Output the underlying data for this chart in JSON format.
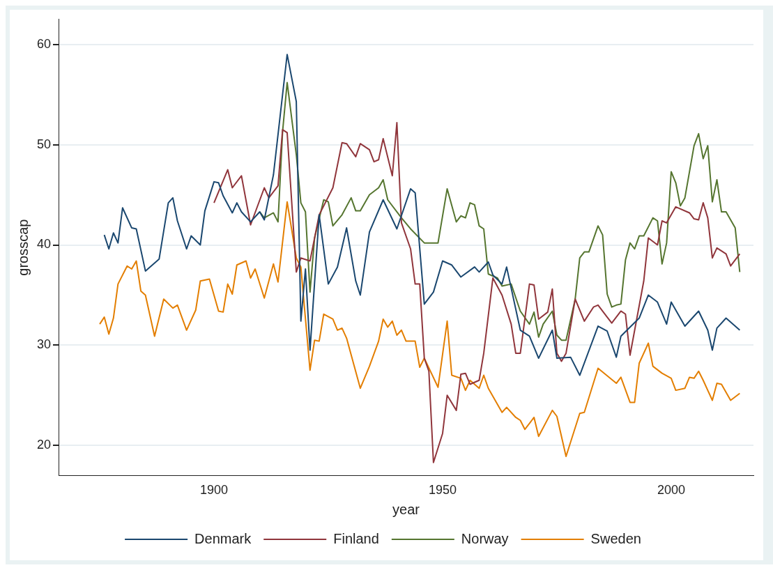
{
  "chart_data": {
    "type": "line",
    "xlabel": "year",
    "ylabel": "grosscap",
    "xlim": [
      1866,
      2018
    ],
    "xticks": [
      1900,
      1950,
      2000
    ],
    "ylim": [
      17,
      62.5
    ],
    "yticks": [
      20,
      30,
      40,
      50,
      60
    ],
    "grid": "y",
    "legend": "bottom",
    "marker": "none",
    "line_style": "solid",
    "series": [
      {
        "name": "Denmark",
        "color": "#1a476f",
        "x": [
          1876,
          1877,
          1878,
          1879,
          1880,
          1882,
          1883,
          1885,
          1888,
          1890,
          1891,
          1892,
          1894,
          1895,
          1897,
          1898,
          1900,
          1901,
          1902,
          1904,
          1905,
          1906,
          1908,
          1910,
          1911,
          1913,
          1916,
          1918,
          1919,
          1920,
          1921,
          1923,
          1925,
          1927,
          1929,
          1931,
          1932,
          1934,
          1937,
          1940,
          1943,
          1944,
          1946,
          1948,
          1950,
          1952,
          1954,
          1957,
          1958,
          1960,
          1961,
          1963,
          1964,
          1967,
          1969,
          1971,
          1974,
          1975,
          1978,
          1980,
          1984,
          1986,
          1988,
          1989,
          1993,
          1995,
          1997,
          1999,
          2000,
          2003,
          2006,
          2008,
          2009,
          2010,
          2012,
          2015
        ],
        "values": [
          41,
          39.6,
          41.2,
          40.2,
          43.7,
          41.7,
          41.6,
          37.4,
          38.6,
          44.2,
          44.7,
          42.4,
          39.6,
          40.9,
          40,
          43.4,
          46.3,
          46.2,
          44.9,
          43.2,
          44.2,
          43.3,
          42.3,
          43.3,
          42.5,
          47,
          59,
          54.3,
          32.4,
          37.6,
          29.5,
          43,
          36.1,
          37.8,
          41.7,
          36.4,
          35,
          41.3,
          44.5,
          41.6,
          45.6,
          45.2,
          34.1,
          35.3,
          38.4,
          38,
          36.8,
          37.8,
          37.3,
          38.3,
          37,
          36.1,
          37.8,
          31.5,
          30.9,
          28.7,
          31.5,
          28.7,
          28.8,
          27,
          31.9,
          31.4,
          28.8,
          30.9,
          32.7,
          35,
          34.3,
          32.1,
          34.3,
          31.9,
          33.4,
          31.5,
          29.5,
          31.7,
          32.7,
          31.5
        ]
      },
      {
        "name": "Finland",
        "color": "#90353b",
        "x": [
          1900,
          1903,
          1904,
          1906,
          1908,
          1911,
          1912,
          1914,
          1915,
          1916,
          1918,
          1919,
          1921,
          1923,
          1926,
          1928,
          1929,
          1931,
          1932,
          1934,
          1935,
          1936,
          1937,
          1939,
          1940,
          1941,
          1943,
          1944,
          1945,
          1946,
          1947,
          1948,
          1950,
          1951,
          1953,
          1954,
          1955,
          1956,
          1958,
          1959,
          1961,
          1963,
          1965,
          1966,
          1967,
          1969,
          1970,
          1971,
          1973,
          1974,
          1975,
          1976,
          1977,
          1979,
          1981,
          1983,
          1984,
          1986,
          1987,
          1989,
          1990,
          1991,
          1994,
          1995,
          1997,
          1998,
          1999,
          2001,
          2004,
          2005,
          2006,
          2007,
          2008,
          2009,
          2010,
          2012,
          2013,
          2015
        ],
        "values": [
          44.2,
          47.5,
          45.7,
          46.9,
          42,
          45.7,
          44.7,
          45.9,
          51.5,
          51.2,
          37.3,
          38.7,
          38.4,
          43,
          45.7,
          50.2,
          50.1,
          48.8,
          50.1,
          49.5,
          48.3,
          48.5,
          50.6,
          46.9,
          52.2,
          42.2,
          39.6,
          36.1,
          36.1,
          28.7,
          27.4,
          18.3,
          21.2,
          25,
          23.5,
          27.1,
          27.2,
          26.1,
          26.5,
          29.2,
          36.7,
          35,
          32.1,
          29.2,
          29.2,
          36.1,
          36,
          32.6,
          33.3,
          35.6,
          29.2,
          28.4,
          29.2,
          34.6,
          32.4,
          33.8,
          34,
          32.8,
          32.2,
          33.4,
          33.1,
          29,
          36.4,
          40.7,
          40,
          42.4,
          42.2,
          43.8,
          43.2,
          42.6,
          42.5,
          44.2,
          42.7,
          38.7,
          39.7,
          39.1,
          37.9,
          39.1
        ]
      },
      {
        "name": "Norway",
        "color": "#55752f",
        "x": [
          1910,
          1911,
          1913,
          1914,
          1915,
          1916,
          1918,
          1919,
          1920,
          1921,
          1922,
          1924,
          1925,
          1926,
          1928,
          1930,
          1931,
          1932,
          1934,
          1936,
          1937,
          1938,
          1941,
          1943,
          1946,
          1949,
          1951,
          1953,
          1954,
          1955,
          1956,
          1957,
          1958,
          1959,
          1960,
          1962,
          1963,
          1965,
          1967,
          1969,
          1970,
          1971,
          1972,
          1974,
          1975,
          1976,
          1977,
          1979,
          1980,
          1981,
          1982,
          1984,
          1985,
          1986,
          1987,
          1988,
          1989,
          1990,
          1991,
          1992,
          1993,
          1994,
          1996,
          1997,
          1998,
          1999,
          2000,
          2001,
          2002,
          2003,
          2005,
          2006,
          2007,
          2008,
          2009,
          2010,
          2011,
          2012,
          2014,
          2015
        ],
        "values": [
          43.3,
          42.7,
          43.2,
          42.3,
          51.3,
          56.2,
          49,
          44.2,
          43.3,
          35.3,
          40.7,
          44.5,
          44.3,
          41.9,
          43,
          44.7,
          43.4,
          43.4,
          45,
          45.7,
          46.5,
          44.5,
          42.7,
          41.6,
          40.2,
          40.2,
          45.6,
          42.3,
          42.9,
          42.7,
          44.2,
          44,
          41.9,
          41.6,
          37.1,
          36.7,
          35.9,
          36.1,
          33.4,
          32.1,
          33.3,
          30.8,
          32.1,
          33.4,
          31,
          30.5,
          30.5,
          34.6,
          38.7,
          39.3,
          39.3,
          41.9,
          41,
          35.1,
          33.8,
          34,
          34.1,
          38.5,
          40.2,
          39.6,
          40.9,
          40.9,
          42.7,
          42.4,
          38.1,
          40.2,
          47.3,
          46.2,
          43.9,
          44.7,
          49.9,
          51.1,
          48.6,
          49.9,
          44.3,
          46.5,
          43.3,
          43.3,
          41.7,
          37.3
        ]
      },
      {
        "name": "Sweden",
        "color": "#e37e00",
        "x": [
          1875,
          1876,
          1877,
          1878,
          1879,
          1881,
          1882,
          1883,
          1884,
          1885,
          1887,
          1889,
          1891,
          1892,
          1894,
          1896,
          1897,
          1899,
          1901,
          1902,
          1903,
          1904,
          1905,
          1907,
          1908,
          1909,
          1911,
          1913,
          1914,
          1916,
          1918,
          1919,
          1921,
          1922,
          1923,
          1924,
          1926,
          1927,
          1928,
          1929,
          1932,
          1934,
          1936,
          1937,
          1938,
          1939,
          1940,
          1941,
          1942,
          1944,
          1945,
          1946,
          1949,
          1951,
          1952,
          1954,
          1955,
          1956,
          1958,
          1959,
          1960,
          1963,
          1964,
          1966,
          1967,
          1968,
          1970,
          1971,
          1974,
          1975,
          1977,
          1980,
          1981,
          1984,
          1988,
          1989,
          1991,
          1992,
          1993,
          1995,
          1996,
          1998,
          2000,
          2001,
          2003,
          2004,
          2005,
          2006,
          2007,
          2009,
          2010,
          2011,
          2013,
          2015
        ],
        "values": [
          32.1,
          32.8,
          31.1,
          32.7,
          36.1,
          37.9,
          37.6,
          38.4,
          35.4,
          35,
          30.9,
          34.6,
          33.7,
          34,
          31.5,
          33.5,
          36.4,
          36.6,
          33.4,
          33.3,
          36.1,
          35.1,
          38,
          38.4,
          36.7,
          37.6,
          34.7,
          38.1,
          36.3,
          44.3,
          38.7,
          37.8,
          27.5,
          30.5,
          30.4,
          33.1,
          32.6,
          31.5,
          31.7,
          30.7,
          25.7,
          27.9,
          30.4,
          32.6,
          31.8,
          32.4,
          31,
          31.5,
          30.4,
          30.4,
          27.8,
          28.7,
          25.8,
          32.4,
          27,
          26.7,
          25.5,
          26.5,
          25.7,
          27,
          25.7,
          23.3,
          23.8,
          22.8,
          22.5,
          21.6,
          22.8,
          20.9,
          23.5,
          22.9,
          18.9,
          23.2,
          23.3,
          27.7,
          26.2,
          26.8,
          24.3,
          24.3,
          28.2,
          30.2,
          27.9,
          27.2,
          26.7,
          25.5,
          25.7,
          26.8,
          26.7,
          27.4,
          26.5,
          24.5,
          26.2,
          26.1,
          24.5,
          25.2
        ]
      }
    ]
  }
}
